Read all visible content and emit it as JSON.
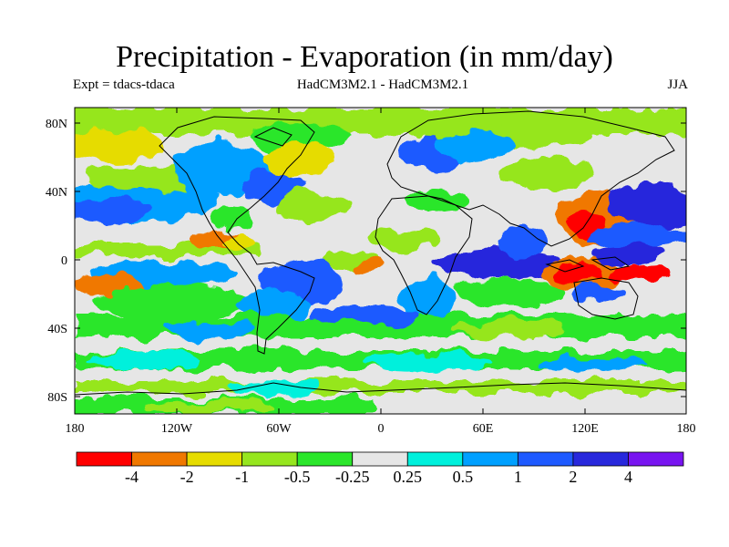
{
  "title": "Precipitation - Evaporation (in mm/day)",
  "subtitle_left": "Expt = tdacs-tdaca",
  "subtitle_center": "HadCM3M2.1 - HadCM3M2.1",
  "subtitle_right": "JJA",
  "map": {
    "lat_labels": [
      "80N",
      "40N",
      "0",
      "40S",
      "80S"
    ],
    "lon_labels": [
      "180",
      "120W",
      "60W",
      "0",
      "60E",
      "120E",
      "180"
    ]
  },
  "colorbar": {
    "colors": [
      "#ff0000",
      "#f07800",
      "#e6dc00",
      "#96e61e",
      "#2be62b",
      "#e6e6e6",
      "#00f0dc",
      "#00a0ff",
      "#1e5aff",
      "#2828dc",
      "#7814f0"
    ],
    "labels": [
      "-4",
      "-2",
      "-1",
      "-0.5",
      "-0.25",
      "0.25",
      "0.5",
      "1",
      "2",
      "4"
    ]
  }
}
